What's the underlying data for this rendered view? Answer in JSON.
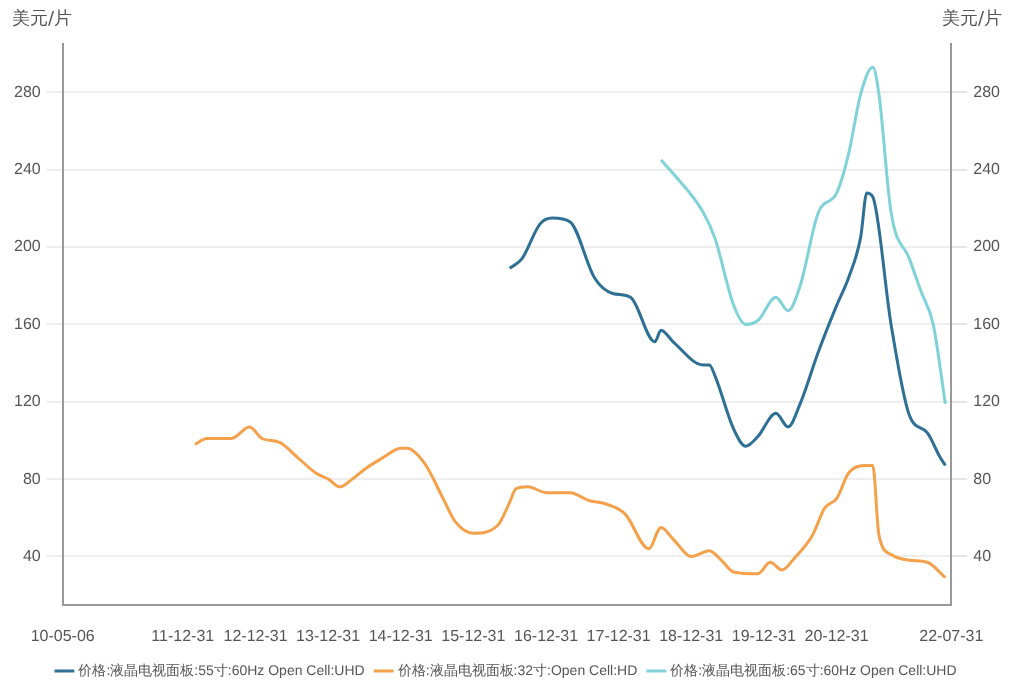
{
  "chart_data": {
    "type": "line",
    "ylabel": "美元/片",
    "y2label": "美元/片",
    "xlim": [
      "2010-05-06",
      "2022-07-31"
    ],
    "xticks": [
      {
        "value": "2010-05-06",
        "label": "10-05-06"
      },
      {
        "value": "2011-12-31",
        "label": "11-12-31"
      },
      {
        "value": "2012-12-31",
        "label": "12-12-31"
      },
      {
        "value": "2013-12-31",
        "label": "13-12-31"
      },
      {
        "value": "2014-12-31",
        "label": "14-12-31"
      },
      {
        "value": "2015-12-31",
        "label": "15-12-31"
      },
      {
        "value": "2016-12-31",
        "label": "16-12-31"
      },
      {
        "value": "2017-12-31",
        "label": "17-12-31"
      },
      {
        "value": "2018-12-31",
        "label": "18-12-31"
      },
      {
        "value": "2019-12-31",
        "label": "19-12-31"
      },
      {
        "value": "2020-12-31",
        "label": "20-12-31"
      },
      {
        "value": "2022-07-31",
        "label": "22-07-31"
      }
    ],
    "ylim": [
      15,
      305
    ],
    "yticks": [
      40,
      80,
      120,
      160,
      200,
      240,
      280
    ],
    "y2lim": [
      15,
      305
    ],
    "y2ticks": [
      40,
      80,
      120,
      160,
      200,
      240,
      280
    ],
    "grid": "y",
    "legend": "bottom",
    "marker": "none",
    "line_style": "solid",
    "series": [
      {
        "name": "价格:液晶电视面板:55寸:60Hz Open Cell:UHD",
        "color": "#2e6f96",
        "x": [
          "2016-07",
          "2016-09",
          "2016-12",
          "2017-02",
          "2017-05",
          "2017-09",
          "2017-12",
          "2018-03",
          "2018-07",
          "2018-08",
          "2018-10",
          "2019-03",
          "2019-04",
          "2019-05",
          "2019-08",
          "2019-10",
          "2019-12",
          "2020-03",
          "2020-05",
          "2020-07",
          "2020-10",
          "2021-01",
          "2021-03",
          "2021-05",
          "2021-06",
          "2021-07",
          "2021-10",
          "2022-01",
          "2022-04",
          "2022-06",
          "2022-07"
        ],
        "values": [
          189,
          194,
          212,
          215,
          213,
          184,
          176,
          174,
          151,
          157,
          151,
          139,
          139,
          133,
          106,
          97,
          102,
          114,
          107,
          119,
          146,
          170,
          184,
          205,
          228,
          226,
          160,
          113,
          104,
          92,
          87
        ]
      },
      {
        "name": "价格:液晶电视面板:32寸:Open Cell:HD",
        "color": "#f5a04a",
        "x": [
          "2012-03",
          "2012-05",
          "2012-09",
          "2012-12",
          "2013-02",
          "2013-05",
          "2013-08",
          "2013-11",
          "2014-01",
          "2014-03",
          "2014-05",
          "2014-07",
          "2014-10",
          "2015-01",
          "2015-02",
          "2015-05",
          "2015-08",
          "2015-10",
          "2016-01",
          "2016-05",
          "2016-07",
          "2016-08",
          "2016-10",
          "2017-01",
          "2017-05",
          "2017-08",
          "2017-11",
          "2018-02",
          "2018-06",
          "2018-08",
          "2018-10",
          "2019-01",
          "2019-04",
          "2019-06",
          "2019-08",
          "2019-12",
          "2020-02",
          "2020-04",
          "2020-06",
          "2020-09",
          "2020-11",
          "2021-01",
          "2021-03",
          "2021-06",
          "2021-07",
          "2021-08",
          "2021-10",
          "2022-01",
          "2022-04",
          "2022-07"
        ],
        "values": [
          98,
          101,
          101,
          107,
          101,
          99,
          91,
          83,
          80,
          76,
          80,
          85,
          91,
          96,
          96,
          88,
          70,
          58,
          52,
          56,
          68,
          75,
          76,
          73,
          73,
          69,
          67,
          62,
          44,
          55,
          49,
          40,
          43,
          38,
          32,
          31,
          37,
          33,
          39,
          51,
          65,
          70,
          83,
          87,
          87,
          51,
          41,
          38,
          37,
          29
        ]
      },
      {
        "name": "价格:液晶电视面板:65寸:60Hz Open Cell:UHD",
        "color": "#7fd3d8",
        "x": [
          "2018-08",
          "2018-10",
          "2019-03",
          "2019-05",
          "2019-08",
          "2019-10",
          "2019-12",
          "2020-03",
          "2020-05",
          "2020-07",
          "2020-10",
          "2021-01",
          "2021-03",
          "2021-05",
          "2021-07",
          "2021-08",
          "2021-10",
          "2022-01",
          "2022-03",
          "2022-05",
          "2022-07"
        ],
        "values": [
          245,
          238,
          218,
          204,
          170,
          160,
          162,
          174,
          167,
          180,
          218,
          228,
          248,
          279,
          293,
          279,
          218,
          194,
          177,
          160,
          119
        ]
      }
    ]
  }
}
